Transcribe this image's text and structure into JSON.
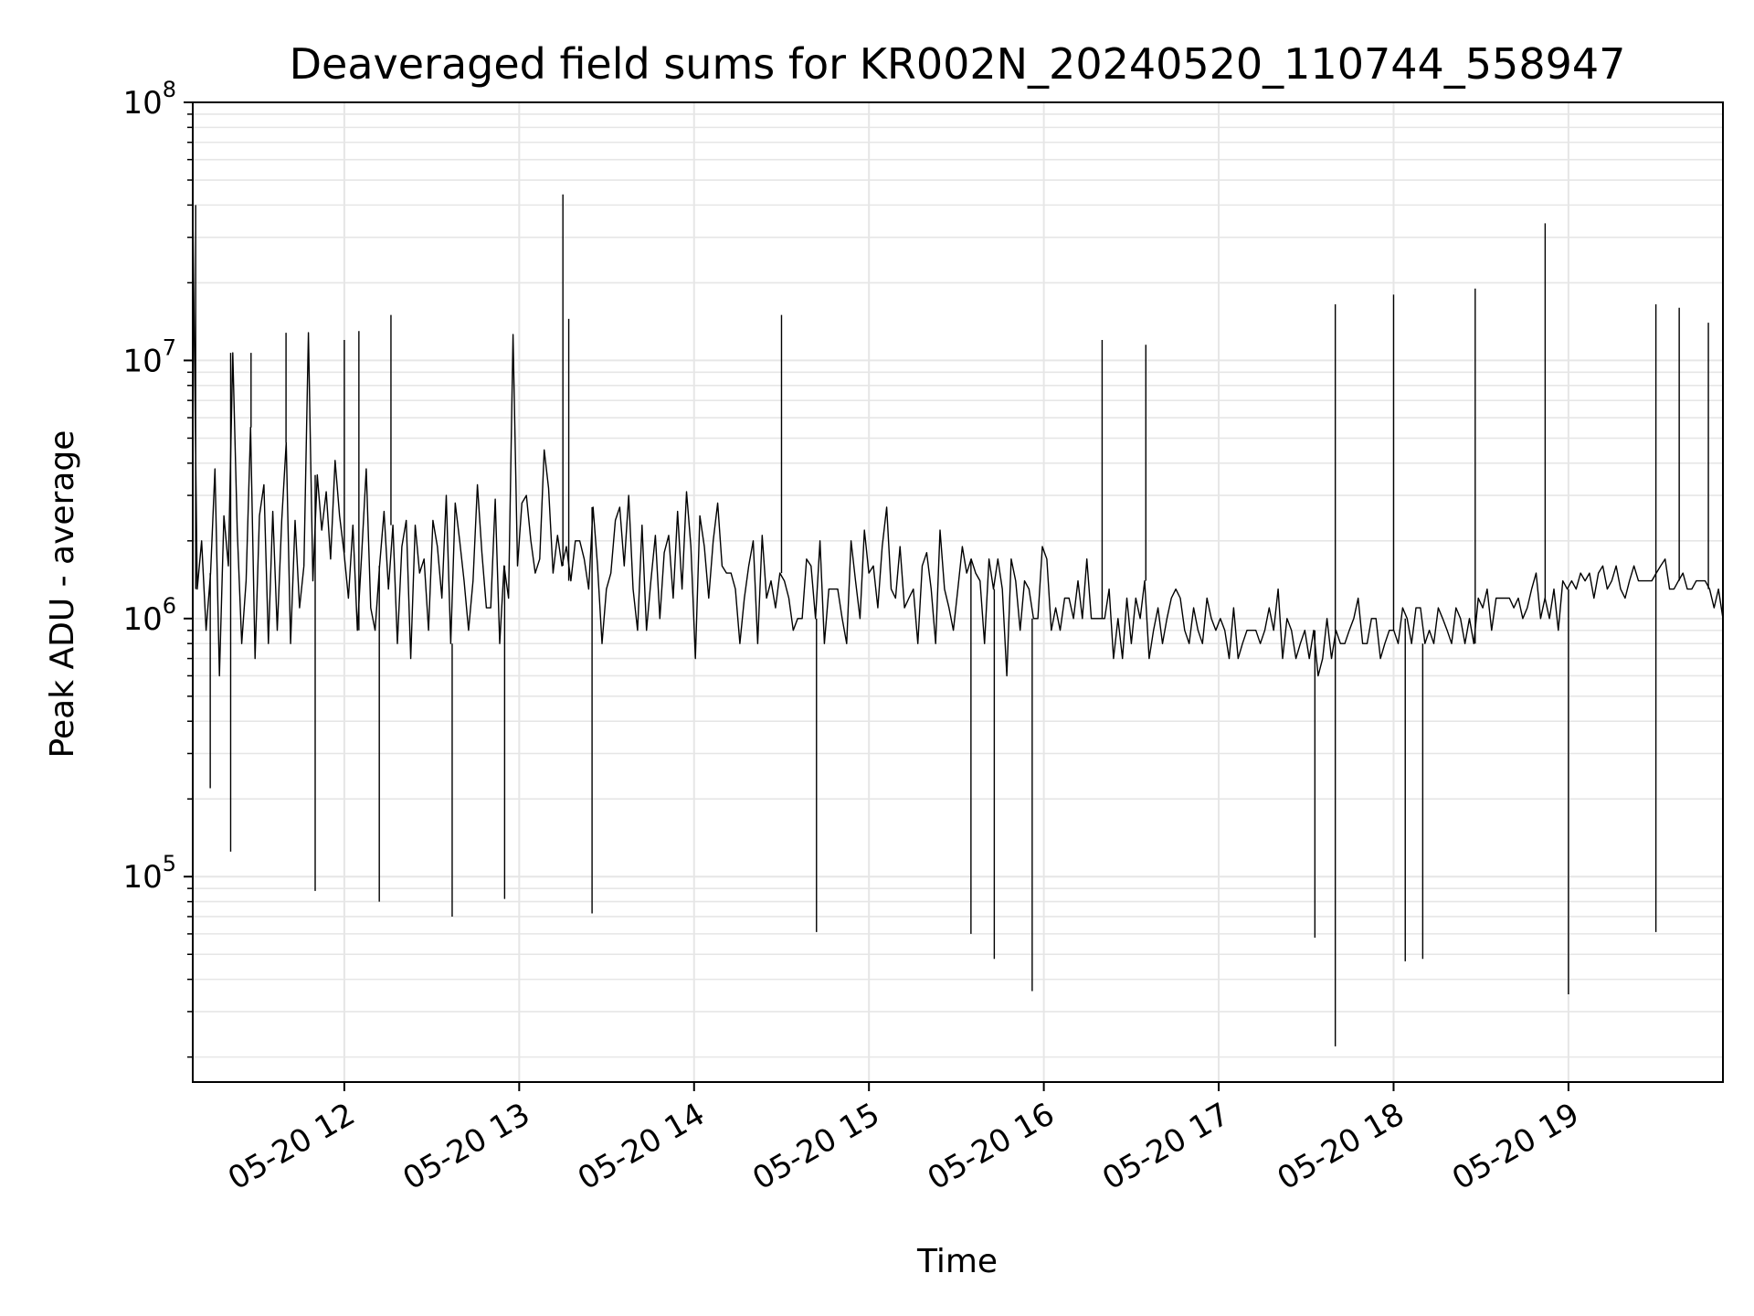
{
  "chart_data": {
    "type": "line",
    "title": "Deaveraged field sums for KR002N_20240520_110744_558947",
    "xlabel": "Time",
    "ylabel": "Peak ADU - average",
    "yscale": "log",
    "ylim": [
      16000,
      100000000
    ],
    "xlim": [
      "2024-05-20 11:08",
      "2024-05-20 19:53"
    ],
    "grid": true,
    "line_color": "#000000",
    "grid_color": "#e6e6e6",
    "x_ticks": [
      {
        "label": "05-20 12",
        "value": "2024-05-20 12:00"
      },
      {
        "label": "05-20 13",
        "value": "2024-05-20 13:00"
      },
      {
        "label": "05-20 14",
        "value": "2024-05-20 14:00"
      },
      {
        "label": "05-20 15",
        "value": "2024-05-20 15:00"
      },
      {
        "label": "05-20 16",
        "value": "2024-05-20 16:00"
      },
      {
        "label": "05-20 17",
        "value": "2024-05-20 17:00"
      },
      {
        "label": "05-20 18",
        "value": "2024-05-20 18:00"
      },
      {
        "label": "05-20 19",
        "value": "2024-05-20 19:00"
      }
    ],
    "y_ticks": [
      {
        "base": "10",
        "exp": "5",
        "value": 100000
      },
      {
        "base": "10",
        "exp": "6",
        "value": 1000000
      },
      {
        "base": "10",
        "exp": "7",
        "value": 10000000
      },
      {
        "base": "10",
        "exp": "8",
        "value": 100000000
      }
    ],
    "series": [
      {
        "x_start": "2024-05-20 11:08",
        "x_end": "2024-05-20 19:53",
        "values": [
          40000000,
          1300000,
          2000000,
          900000,
          1500000,
          3800000,
          600000,
          2500000,
          1600000,
          10700000,
          2200000,
          800000,
          1400000,
          5500000,
          700000,
          2500000,
          3300000,
          800000,
          2600000,
          900000,
          2400000,
          4800000,
          800000,
          2400000,
          1100000,
          1600000,
          12800000,
          1400000,
          3600000,
          2200000,
          3100000,
          1700000,
          4100000,
          2500000,
          1800000,
          1200000,
          2300000,
          900000,
          1800000,
          3800000,
          1100000,
          900000,
          1600000,
          2600000,
          1300000,
          2300000,
          800000,
          1900000,
          2400000,
          700000,
          2300000,
          1500000,
          1700000,
          900000,
          2400000,
          1900000,
          1200000,
          3000000,
          800000,
          2800000,
          2000000,
          1400000,
          900000,
          1400000,
          3300000,
          1800000,
          1100000,
          1100000,
          2900000,
          800000,
          1600000,
          1200000,
          12600000,
          1600000,
          2800000,
          3000000,
          2000000,
          1500000,
          1700000,
          4500000,
          3200000,
          1500000,
          2100000,
          1600000,
          1900000,
          1400000,
          2000000,
          2000000,
          1700000,
          1300000,
          2700000,
          1600000,
          800000,
          1300000,
          1500000,
          2400000,
          2700000,
          1600000,
          3000000,
          1300000,
          900000,
          2300000,
          900000,
          1400000,
          2100000,
          1000000,
          1800000,
          2100000,
          1200000,
          2600000,
          1300000,
          3100000,
          1900000,
          700000,
          2500000,
          1900000,
          1200000,
          2000000,
          2800000,
          1600000,
          1500000,
          1500000,
          1300000,
          800000,
          1200000,
          1600000,
          2000000,
          800000,
          2100000,
          1200000,
          1400000,
          1100000,
          1500000,
          1400000,
          1200000,
          900000,
          1000000,
          1000000,
          1700000,
          1600000,
          1000000,
          2000000,
          800000,
          1300000,
          1300000,
          1300000,
          1000000,
          800000,
          2000000,
          1400000,
          1000000,
          2200000,
          1500000,
          1600000,
          1100000,
          1900000,
          2700000,
          1300000,
          1200000,
          1900000,
          1100000,
          1200000,
          1300000,
          800000,
          1600000,
          1800000,
          1300000,
          800000,
          2200000,
          1300000,
          1100000,
          900000,
          1300000,
          1900000,
          1500000,
          1700000,
          1500000,
          1400000,
          800000,
          1700000,
          1300000,
          1700000,
          1300000,
          600000,
          1700000,
          1400000,
          900000,
          1400000,
          1300000,
          1000000,
          1000000,
          1900000,
          1700000,
          900000,
          1100000,
          900000,
          1200000,
          1200000,
          1000000,
          1400000,
          1000000,
          1700000,
          1000000,
          1000000,
          1000000,
          1000000,
          1300000,
          700000,
          1000000,
          700000,
          1200000,
          800000,
          1200000,
          1000000,
          1400000,
          700000,
          900000,
          1100000,
          800000,
          1000000,
          1200000,
          1300000,
          1200000,
          900000,
          800000,
          1100000,
          900000,
          800000,
          1200000,
          1000000,
          900000,
          1000000,
          900000,
          700000,
          1100000,
          700000,
          800000,
          900000,
          900000,
          900000,
          800000,
          900000,
          1100000,
          900000,
          1300000,
          700000,
          1000000,
          900000,
          700000,
          800000,
          900000,
          700000,
          900000,
          600000,
          700000,
          1000000,
          700000,
          900000,
          800000,
          800000,
          900000,
          1000000,
          1200000,
          800000,
          800000,
          1000000,
          1000000,
          700000,
          800000,
          900000,
          900000,
          800000,
          1100000,
          1000000,
          800000,
          1100000,
          1100000,
          800000,
          900000,
          800000,
          1100000,
          1000000,
          900000,
          800000,
          1100000,
          1000000,
          800000,
          1000000,
          800000,
          1200000,
          1100000,
          1300000,
          900000,
          1200000,
          1200000,
          1200000,
          1200000,
          1100000,
          1200000,
          1000000,
          1100000,
          1300000,
          1500000,
          1000000,
          1200000,
          1000000,
          1300000,
          900000,
          1400000,
          1300000,
          1400000,
          1300000,
          1500000,
          1400000,
          1500000,
          1200000,
          1500000,
          1600000,
          1300000,
          1400000,
          1600000,
          1300000,
          1200000,
          1400000,
          1600000,
          1400000,
          1400000,
          1400000,
          1400000,
          1500000,
          1600000,
          1700000,
          1300000,
          1300000,
          1400000,
          1500000,
          1300000,
          1300000,
          1400000,
          1400000,
          1400000,
          1300000,
          1100000,
          1300000,
          1000000
        ]
      }
    ],
    "spikes": [
      {
        "x": "2024-05-20 11:09",
        "y": 40000000
      },
      {
        "x": "2024-05-20 11:28",
        "y": 10700000
      },
      {
        "x": "2024-05-20 11:40",
        "y": 12800000
      },
      {
        "x": "2024-05-20 12:00",
        "y": 12000000
      },
      {
        "x": "2024-05-20 12:05",
        "y": 13000000
      },
      {
        "x": "2024-05-20 12:16",
        "y": 15000000
      },
      {
        "x": "2024-05-20 13:15",
        "y": 44000000
      },
      {
        "x": "2024-05-20 13:17",
        "y": 14500000
      },
      {
        "x": "2024-05-20 14:30",
        "y": 15000000
      },
      {
        "x": "2024-05-20 16:20",
        "y": 12000000
      },
      {
        "x": "2024-05-20 16:35",
        "y": 11500000
      },
      {
        "x": "2024-05-20 17:40",
        "y": 16500000
      },
      {
        "x": "2024-05-20 18:00",
        "y": 18000000
      },
      {
        "x": "2024-05-20 18:28",
        "y": 19000000
      },
      {
        "x": "2024-05-20 18:52",
        "y": 34000000
      },
      {
        "x": "2024-05-20 19:30",
        "y": 16500000
      },
      {
        "x": "2024-05-20 19:38",
        "y": 16000000
      },
      {
        "x": "2024-05-20 19:48",
        "y": 14000000
      },
      {
        "x": "2024-05-20 11:14",
        "y": 220000
      },
      {
        "x": "2024-05-20 11:21",
        "y": 125000
      },
      {
        "x": "2024-05-20 11:50",
        "y": 88000
      },
      {
        "x": "2024-05-20 12:12",
        "y": 80000
      },
      {
        "x": "2024-05-20 12:37",
        "y": 70000
      },
      {
        "x": "2024-05-20 12:55",
        "y": 82000
      },
      {
        "x": "2024-05-20 13:25",
        "y": 72000
      },
      {
        "x": "2024-05-20 14:42",
        "y": 61000
      },
      {
        "x": "2024-05-20 15:35",
        "y": 60000
      },
      {
        "x": "2024-05-20 15:43",
        "y": 48000
      },
      {
        "x": "2024-05-20 15:56",
        "y": 36000
      },
      {
        "x": "2024-05-20 17:33",
        "y": 58000
      },
      {
        "x": "2024-05-20 17:40",
        "y": 22000
      },
      {
        "x": "2024-05-20 18:04",
        "y": 47000
      },
      {
        "x": "2024-05-20 18:10",
        "y": 48000
      },
      {
        "x": "2024-05-20 19:00",
        "y": 35000
      },
      {
        "x": "2024-05-20 19:30",
        "y": 61000
      }
    ]
  }
}
